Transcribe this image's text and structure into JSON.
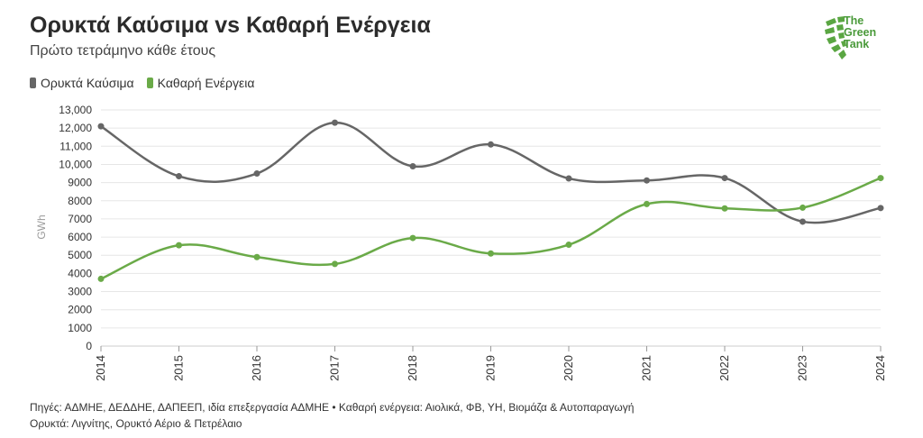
{
  "header": {
    "title": "Ορυκτά Καύσιμα vs Καθαρή Ενέργεια",
    "subtitle": "Πρώτο τετράμηνο κάθε έτους"
  },
  "logo": {
    "line1": "The",
    "line2": "Green",
    "line3": "Tank",
    "color": "#5aa642"
  },
  "footer": {
    "line1": "Πηγές: ΑΔΜΗΕ, ΔΕΔΔΗΕ, ΔΑΠΕΕΠ, ιδία επεξεργασία ΑΔΜΗΕ • Καθαρή ενέργεια: Αιολικά, ΦΒ, ΥΗ, Βιομάζα & Αυτοπαραγωγή",
    "line2": "Ορυκτά: Λιγνίτης, Ορυκτό Αέριο & Πετρέλαιο"
  },
  "chart_data": {
    "type": "line",
    "ylabel": "GWh",
    "xlabel": "",
    "ylim": [
      0,
      13000
    ],
    "yticks": [
      0,
      1000,
      2000,
      3000,
      4000,
      5000,
      6000,
      7000,
      8000,
      9000,
      10000,
      11000,
      12000,
      13000
    ],
    "ytick_labels": [
      "0",
      "1000",
      "2000",
      "3000",
      "4000",
      "5000",
      "6000",
      "7000",
      "8000",
      "9000",
      "10,000",
      "11,000",
      "12,000",
      "13,000"
    ],
    "grid": true,
    "legend_position": "top-left",
    "categories": [
      "2014",
      "2015",
      "2016",
      "2017",
      "2018",
      "2019",
      "2020",
      "2021",
      "2022",
      "2023",
      "2024"
    ],
    "series": [
      {
        "name": "Ορυκτά Καύσιμα",
        "color": "#666666",
        "values": [
          12100,
          9350,
          9500,
          12300,
          9900,
          11100,
          9230,
          9120,
          9250,
          6850,
          7600
        ]
      },
      {
        "name": "Καθαρή Ενέργεια",
        "color": "#6aaa48",
        "values": [
          3700,
          5550,
          4900,
          4520,
          5950,
          5100,
          5580,
          7820,
          7580,
          7620,
          9250
        ]
      }
    ]
  }
}
